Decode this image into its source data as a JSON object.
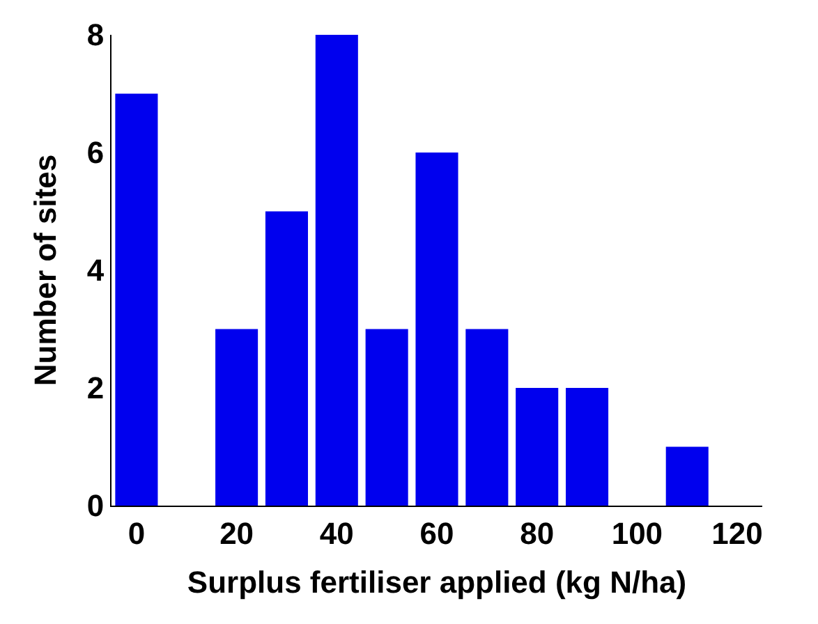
{
  "chart_data": {
    "type": "bar",
    "xlabel": "Surplus fertiliser applied (kg N/ha)",
    "ylabel": "Number of sites",
    "categories": [
      "0",
      null,
      "20",
      null,
      "40",
      null,
      "60",
      null,
      "80",
      null,
      "100",
      null,
      "120"
    ],
    "values": [
      7,
      0,
      3,
      5,
      8,
      3,
      6,
      3,
      2,
      2,
      0,
      1,
      0
    ],
    "color": "#0000ee",
    "ylim": [
      0,
      8
    ],
    "yticks": [
      0,
      2,
      4,
      6,
      8
    ]
  }
}
